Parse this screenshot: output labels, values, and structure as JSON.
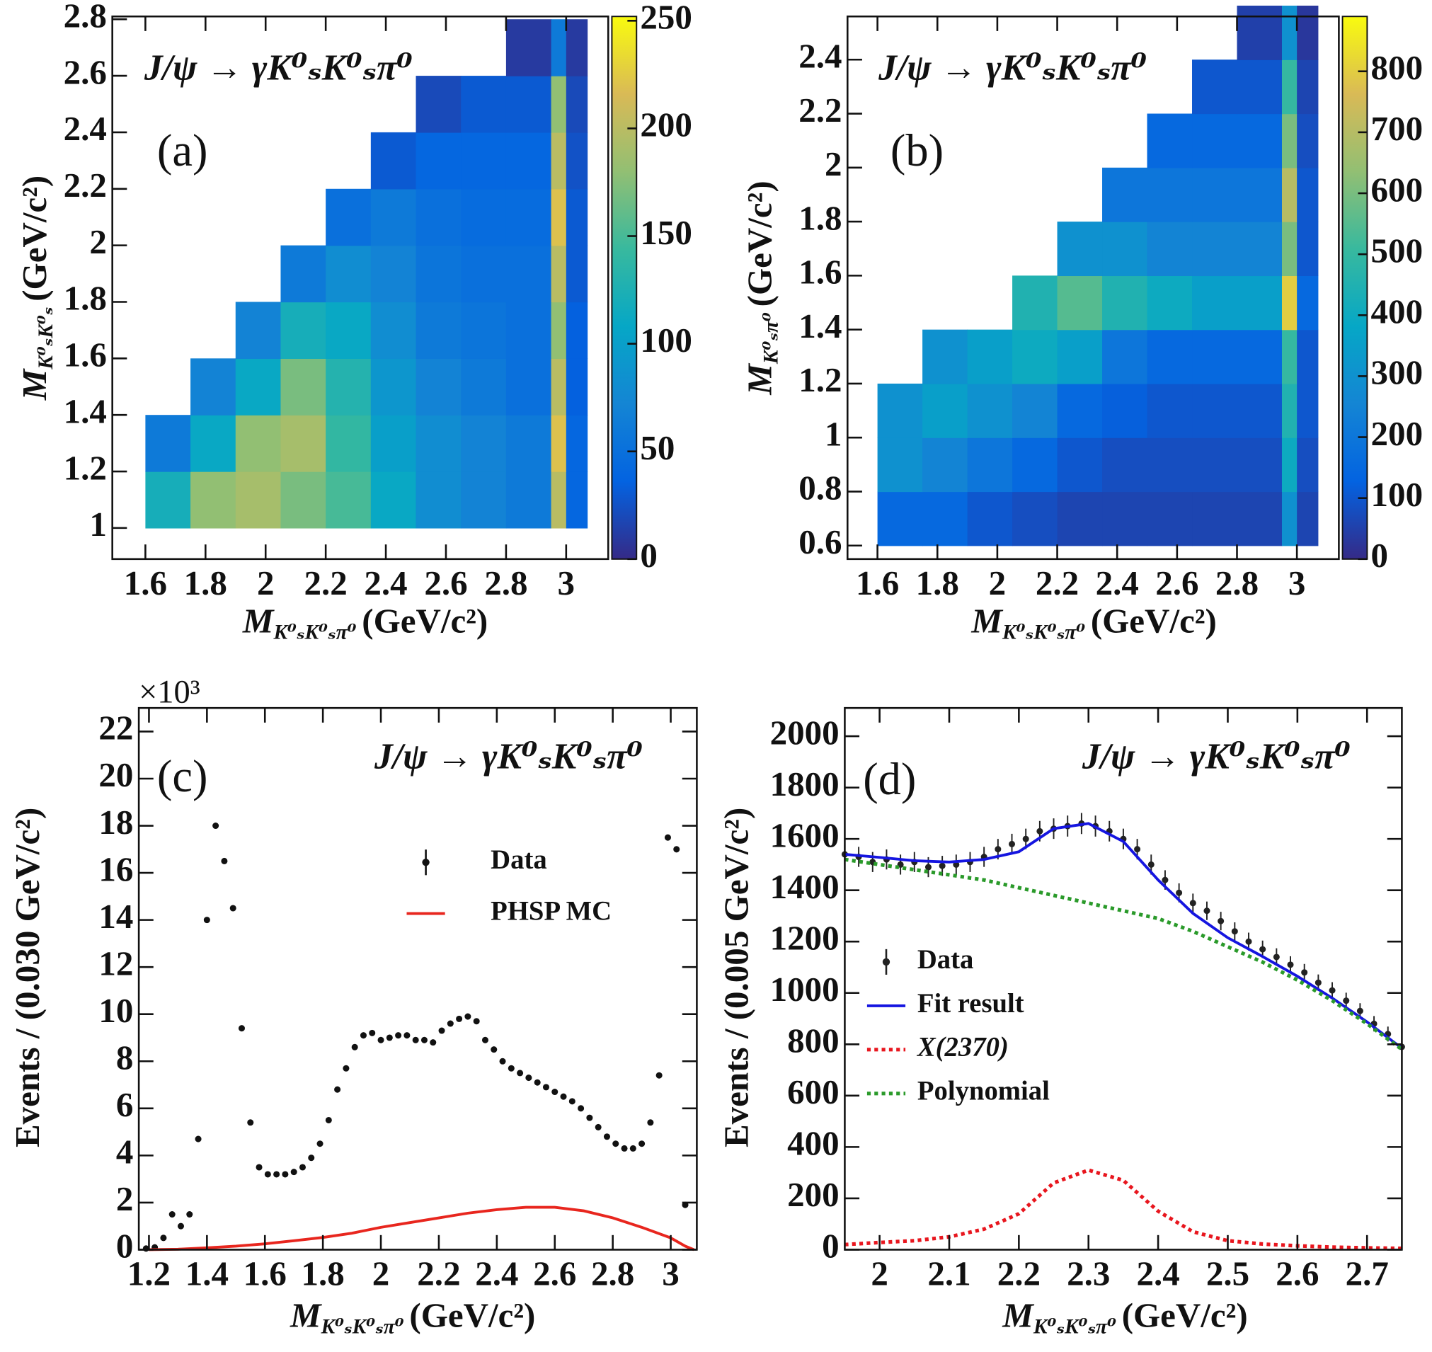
{
  "chart_data": [
    {
      "type": "heatmap",
      "title": "J/ψ → γK⁰ₛK⁰ₛπ⁰",
      "panel_label": "(a)",
      "xlabel": {
        "symbol": "M",
        "subscript": "K⁰ₛK⁰ₛπ⁰",
        "unit": "(GeV/c²)"
      },
      "ylabel": {
        "symbol": "M",
        "subscript": "K⁰ₛK⁰ₛ",
        "unit": "(GeV/c²)"
      },
      "xlim": [
        1.49,
        3.14
      ],
      "ylim": [
        0.89,
        2.81
      ],
      "xticks": [
        1.6,
        1.8,
        2,
        2.2,
        2.4,
        2.6,
        2.8,
        3
      ],
      "yticks": [
        1,
        1.2,
        1.4,
        1.6,
        1.8,
        2,
        2.2,
        2.4,
        2.6,
        2.8
      ],
      "zlim": [
        0,
        252
      ],
      "zticks": [
        0,
        50,
        100,
        150,
        200,
        250
      ],
      "colormap": [
        "#352a87",
        "#0363e1",
        "#1485d4",
        "#06a7c6",
        "#38b99e",
        "#92bf73",
        "#d9ba56",
        "#f9fb0e"
      ],
      "xbins": [
        1.6,
        1.75,
        1.9,
        2.05,
        2.2,
        2.35,
        2.5,
        2.65,
        2.8,
        2.95,
        3.0,
        3.07
      ],
      "ybins": [
        1.0,
        1.2,
        1.4,
        1.6,
        1.8,
        2.0,
        2.2,
        2.4,
        2.6,
        2.8
      ],
      "z": [
        [
          120,
          180,
          190,
          170,
          150,
          110,
          80,
          70,
          60,
          200,
          40
        ],
        [
          60,
          110,
          180,
          190,
          140,
          100,
          80,
          70,
          60,
          220,
          40
        ],
        [
          null,
          70,
          110,
          170,
          130,
          90,
          70,
          60,
          50,
          200,
          35
        ],
        [
          null,
          null,
          70,
          120,
          110,
          80,
          60,
          55,
          50,
          180,
          35
        ],
        [
          null,
          null,
          null,
          60,
          80,
          70,
          55,
          50,
          50,
          200,
          30
        ],
        [
          null,
          null,
          null,
          null,
          50,
          60,
          50,
          45,
          45,
          220,
          30
        ],
        [
          null,
          null,
          null,
          null,
          null,
          30,
          40,
          40,
          40,
          200,
          25
        ],
        [
          null,
          null,
          null,
          null,
          null,
          null,
          20,
          30,
          30,
          180,
          20
        ],
        [
          null,
          null,
          null,
          null,
          null,
          null,
          null,
          null,
          10,
          60,
          10
        ]
      ]
    },
    {
      "type": "heatmap",
      "title": "J/ψ → γK⁰ₛK⁰ₛπ⁰",
      "panel_label": "(b)",
      "xlabel": {
        "symbol": "M",
        "subscript": "K⁰ₛK⁰ₛπ⁰",
        "unit": "(GeV/c²)"
      },
      "ylabel": {
        "symbol": "M",
        "subscript": "K⁰ₛπ⁰",
        "unit": "(GeV/c²)"
      },
      "xlim": [
        1.5,
        3.14
      ],
      "ylim": [
        0.55,
        2.56
      ],
      "xticks": [
        1.6,
        1.8,
        2,
        2.2,
        2.4,
        2.6,
        2.8,
        3
      ],
      "yticks": [
        0.6,
        0.8,
        1,
        1.2,
        1.4,
        1.6,
        1.8,
        2,
        2.2,
        2.4
      ],
      "zlim": [
        0,
        890
      ],
      "zticks": [
        0,
        100,
        200,
        300,
        400,
        500,
        600,
        700,
        800
      ],
      "colormap": [
        "#352a87",
        "#0363e1",
        "#1485d4",
        "#06a7c6",
        "#38b99e",
        "#92bf73",
        "#d9ba56",
        "#f9fb0e"
      ],
      "xbins": [
        1.6,
        1.75,
        1.9,
        2.05,
        2.2,
        2.35,
        2.5,
        2.65,
        2.8,
        2.95,
        3.0,
        3.07
      ],
      "ybins": [
        0.6,
        0.8,
        1.0,
        1.2,
        1.4,
        1.6,
        1.8,
        2.0,
        2.2,
        2.4,
        2.6
      ],
      "z": [
        [
          150,
          150,
          100,
          80,
          60,
          60,
          60,
          60,
          60,
          300,
          60
        ],
        [
          300,
          250,
          200,
          150,
          100,
          80,
          80,
          80,
          80,
          400,
          80
        ],
        [
          300,
          350,
          300,
          250,
          150,
          120,
          100,
          100,
          100,
          450,
          100
        ],
        [
          null,
          300,
          350,
          400,
          350,
          200,
          150,
          150,
          150,
          500,
          100
        ],
        [
          null,
          null,
          null,
          450,
          550,
          450,
          400,
          350,
          350,
          800,
          150
        ],
        [
          null,
          null,
          null,
          null,
          300,
          300,
          250,
          250,
          250,
          600,
          100
        ],
        [
          null,
          null,
          null,
          null,
          null,
          200,
          200,
          200,
          200,
          700,
          100
        ],
        [
          null,
          null,
          null,
          null,
          null,
          null,
          150,
          150,
          150,
          600,
          80
        ],
        [
          null,
          null,
          null,
          null,
          null,
          null,
          null,
          100,
          100,
          500,
          60
        ],
        [
          null,
          null,
          null,
          null,
          null,
          null,
          null,
          null,
          50,
          300,
          30
        ]
      ]
    },
    {
      "type": "scatter",
      "title": "J/ψ → γK⁰ₛK⁰ₛπ⁰",
      "panel_label": "(c)",
      "xlabel": {
        "symbol": "M",
        "subscript": "K⁰ₛK⁰ₛπ⁰",
        "unit": "(GeV/c²)"
      },
      "ylabel": "Events / (0.030 GeV/c²)",
      "y_multiplier": "×10³",
      "xlim": [
        1.165,
        3.09
      ],
      "ylim": [
        0,
        23
      ],
      "xticks": [
        1.2,
        1.4,
        1.6,
        1.8,
        2,
        2.2,
        2.4,
        2.6,
        2.8,
        3
      ],
      "yticks": [
        0,
        2,
        4,
        6,
        8,
        10,
        12,
        14,
        16,
        18,
        20,
        22
      ],
      "legend": "right",
      "series": [
        {
          "name": "Data",
          "mode": "markers",
          "color": "#111111",
          "x": [
            1.19,
            1.22,
            1.25,
            1.28,
            1.31,
            1.34,
            1.37,
            1.4,
            1.43,
            1.46,
            1.49,
            1.52,
            1.55,
            1.58,
            1.61,
            1.64,
            1.67,
            1.7,
            1.73,
            1.76,
            1.79,
            1.82,
            1.85,
            1.88,
            1.91,
            1.94,
            1.97,
            2.0,
            2.03,
            2.06,
            2.09,
            2.12,
            2.15,
            2.18,
            2.21,
            2.24,
            2.27,
            2.3,
            2.33,
            2.36,
            2.39,
            2.42,
            2.45,
            2.48,
            2.51,
            2.54,
            2.57,
            2.6,
            2.63,
            2.66,
            2.69,
            2.72,
            2.75,
            2.78,
            2.81,
            2.84,
            2.87,
            2.9,
            2.93,
            2.96,
            2.99,
            3.02,
            3.05
          ],
          "values": [
            0.05,
            0.1,
            0.5,
            1.5,
            1.0,
            1.5,
            4.7,
            14,
            18,
            16.5,
            14.5,
            9.4,
            5.4,
            3.5,
            3.2,
            3.2,
            3.2,
            3.3,
            3.5,
            3.9,
            4.5,
            5.5,
            6.8,
            7.7,
            8.6,
            9.1,
            9.2,
            8.9,
            9.0,
            9.1,
            9.1,
            8.9,
            8.9,
            8.8,
            9.3,
            9.6,
            9.8,
            9.9,
            9.7,
            8.9,
            8.5,
            8.0,
            7.7,
            7.5,
            7.3,
            7.1,
            6.9,
            6.7,
            6.5,
            6.3,
            6.0,
            5.6,
            5.2,
            4.8,
            4.5,
            4.3,
            4.3,
            4.5,
            5.4,
            7.4,
            17.5,
            17.0,
            1.9
          ]
        },
        {
          "name": "PHSP MC",
          "mode": "line",
          "color": "#e8261e",
          "x": [
            1.2,
            1.3,
            1.4,
            1.5,
            1.6,
            1.7,
            1.8,
            1.9,
            2.0,
            2.1,
            2.2,
            2.3,
            2.4,
            2.5,
            2.6,
            2.7,
            2.8,
            2.9,
            3.0,
            3.05,
            3.08
          ],
          "values": [
            0,
            0.02,
            0.08,
            0.15,
            0.25,
            0.38,
            0.52,
            0.7,
            0.95,
            1.15,
            1.35,
            1.55,
            1.7,
            1.8,
            1.8,
            1.65,
            1.35,
            0.95,
            0.5,
            0.15,
            0
          ]
        }
      ]
    },
    {
      "type": "scatter",
      "title": "J/ψ → γK⁰ₛK⁰ₛπ⁰",
      "panel_label": "(d)",
      "xlabel": {
        "symbol": "M",
        "subscript": "K⁰ₛK⁰ₛπ⁰",
        "unit": "(GeV/c²)"
      },
      "ylabel": "Events / (0.005 GeV/c²)",
      "xlim": [
        1.95,
        2.75
      ],
      "ylim": [
        0,
        2110
      ],
      "xticks": [
        2,
        2.1,
        2.2,
        2.3,
        2.4,
        2.5,
        2.6,
        2.7
      ],
      "yticks": [
        0,
        200,
        400,
        600,
        800,
        1000,
        1200,
        1400,
        1600,
        1800,
        2000
      ],
      "legend": "left",
      "series": [
        {
          "name": "Data",
          "mode": "markers",
          "color": "#222222",
          "x": [
            1.95,
            1.97,
            1.99,
            2.01,
            2.03,
            2.05,
            2.07,
            2.09,
            2.11,
            2.13,
            2.15,
            2.17,
            2.19,
            2.21,
            2.23,
            2.25,
            2.27,
            2.29,
            2.31,
            2.33,
            2.35,
            2.37,
            2.39,
            2.41,
            2.43,
            2.45,
            2.47,
            2.49,
            2.51,
            2.53,
            2.55,
            2.57,
            2.59,
            2.61,
            2.63,
            2.65,
            2.67,
            2.69,
            2.71,
            2.73,
            2.75
          ],
          "values": [
            1540,
            1530,
            1510,
            1520,
            1500,
            1510,
            1490,
            1495,
            1500,
            1510,
            1530,
            1560,
            1580,
            1600,
            1630,
            1640,
            1650,
            1660,
            1650,
            1630,
            1600,
            1560,
            1500,
            1440,
            1390,
            1350,
            1320,
            1280,
            1240,
            1200,
            1170,
            1140,
            1110,
            1080,
            1040,
            1010,
            970,
            930,
            880,
            840,
            790
          ],
          "errors": [
            39,
            39,
            39,
            39,
            39,
            39,
            39,
            39,
            39,
            39,
            39,
            40,
            40,
            40,
            40,
            40,
            41,
            41,
            41,
            40,
            40,
            40,
            39,
            38,
            37,
            37,
            36,
            36,
            35,
            35,
            34,
            34,
            33,
            33,
            32,
            32,
            31,
            30,
            30,
            29,
            28
          ]
        },
        {
          "name": "Fit result",
          "mode": "line",
          "color": "#1515e0",
          "x": [
            1.95,
            2.0,
            2.05,
            2.1,
            2.15,
            2.2,
            2.25,
            2.3,
            2.35,
            2.4,
            2.45,
            2.5,
            2.55,
            2.6,
            2.65,
            2.7,
            2.75
          ],
          "values": [
            1540,
            1528,
            1515,
            1510,
            1520,
            1550,
            1640,
            1660,
            1590,
            1440,
            1310,
            1215,
            1142,
            1065,
            980,
            887,
            785
          ]
        },
        {
          "name": "X(2370)",
          "mode": "line",
          "dash": "dotted",
          "color": "#e8161e",
          "x": [
            1.95,
            2.0,
            2.05,
            2.1,
            2.15,
            2.2,
            2.25,
            2.3,
            2.35,
            2.4,
            2.45,
            2.5,
            2.55,
            2.6,
            2.65,
            2.7,
            2.75
          ],
          "values": [
            20,
            28,
            35,
            50,
            80,
            140,
            260,
            310,
            270,
            150,
            70,
            35,
            22,
            15,
            10,
            7,
            5
          ]
        },
        {
          "name": "Polynomial",
          "mode": "line",
          "dash": "dotted",
          "color": "#2a9a2a",
          "x": [
            1.95,
            2.0,
            2.05,
            2.1,
            2.15,
            2.2,
            2.25,
            2.3,
            2.35,
            2.4,
            2.45,
            2.5,
            2.55,
            2.6,
            2.65,
            2.7,
            2.75
          ],
          "values": [
            1520,
            1500,
            1480,
            1460,
            1440,
            1410,
            1380,
            1350,
            1320,
            1290,
            1240,
            1180,
            1120,
            1050,
            970,
            880,
            780
          ]
        }
      ]
    }
  ]
}
